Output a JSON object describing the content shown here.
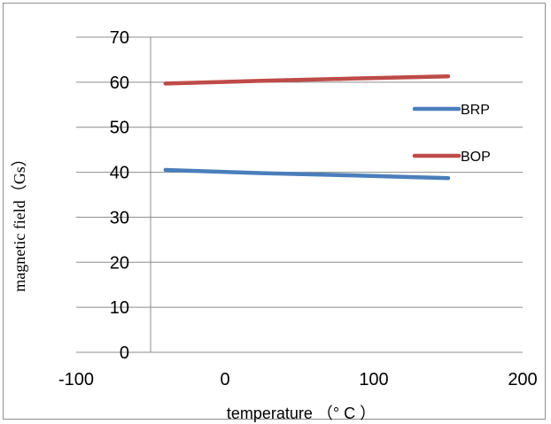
{
  "chart_data": {
    "type": "line",
    "title": "",
    "xlabel": "temperature  （° C ）",
    "ylabel": "magnetic field（Gs）",
    "xlim": [
      -100,
      200
    ],
    "ylim": [
      0,
      70
    ],
    "xticks": [
      -100,
      0,
      100,
      200
    ],
    "yticks": [
      0,
      10,
      20,
      30,
      40,
      50,
      60,
      70
    ],
    "grid": "horizontal",
    "legend_position": "right",
    "series": [
      {
        "name": "BRP",
        "color": "#4a7ebb",
        "x": [
          -40,
          25,
          85,
          150
        ],
        "y": [
          40.5,
          39.8,
          39.3,
          38.7
        ]
      },
      {
        "name": "BOP",
        "color": "#be4b48",
        "x": [
          -40,
          25,
          85,
          150
        ],
        "y": [
          59.7,
          60.3,
          60.8,
          61.3
        ]
      }
    ]
  }
}
